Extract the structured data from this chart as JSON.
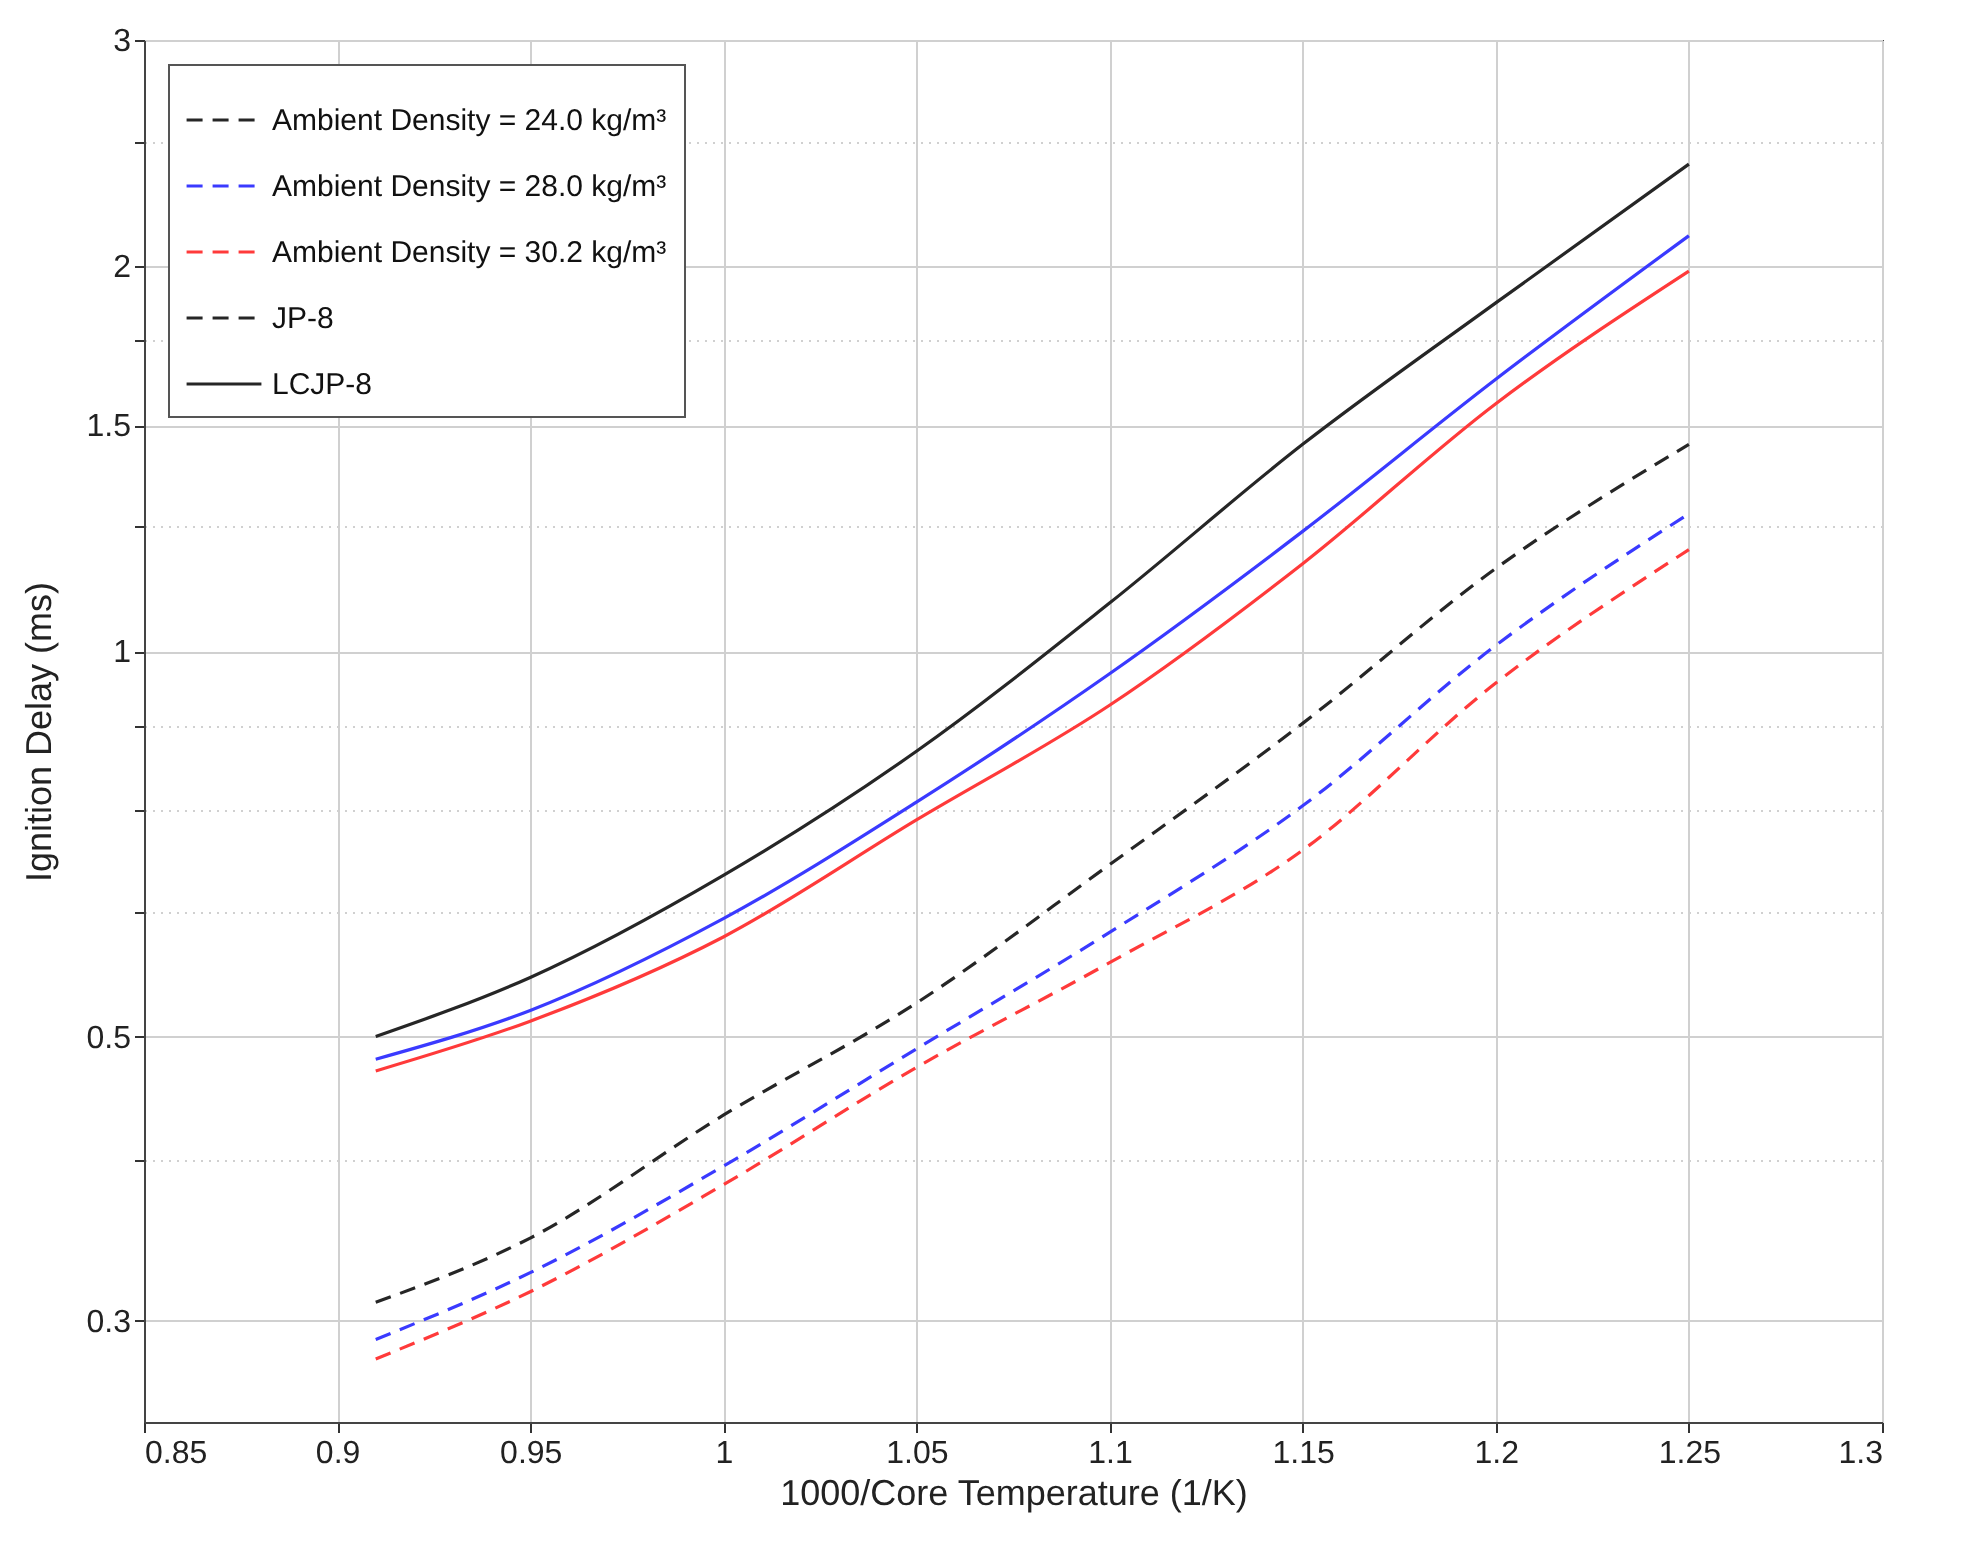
{
  "chart_data": {
    "type": "line",
    "xlabel": "1000/Core Temperature (1/K)",
    "ylabel": "Ignition Delay (ms)",
    "x": [
      0.91,
      0.95,
      1.0,
      1.05,
      1.1,
      1.15,
      1.2,
      1.25
    ],
    "series": [
      {
        "name": "Ambient Density = 24.0 kg/m³",
        "color": "#262626",
        "line_style": "dashed",
        "values": [
          0.31,
          0.348,
          0.434,
          0.531,
          0.681,
          0.878,
          1.16,
          1.45
        ]
      },
      {
        "name": "Ambient Density = 28.0 kg/m³",
        "color": "#3a3aff",
        "line_style": "dashed",
        "values": [
          0.29,
          0.327,
          0.396,
          0.489,
          0.603,
          0.757,
          1.01,
          1.28
        ]
      },
      {
        "name": "Ambient Density = 30.2 kg/m³",
        "color": "#ff3a3a",
        "line_style": "dashed",
        "values": [
          0.28,
          0.316,
          0.383,
          0.473,
          0.571,
          0.699,
          0.944,
          1.2
        ]
      },
      {
        "name": "JP-8",
        "color": "#262626",
        "line_style": "dashed",
        "values": [
          null,
          null,
          null,
          null,
          null,
          null,
          null,
          null
        ]
      },
      {
        "name": "LCJP-8",
        "color": "#262626",
        "line_style": "solid",
        "values": [
          0.5,
          0.556,
          0.668,
          0.835,
          1.09,
          1.45,
          1.87,
          2.4
        ]
      },
      {
        "color": "#3a3aff",
        "line_style": "solid",
        "values": [
          0.48,
          0.524,
          0.618,
          0.762,
          0.96,
          1.24,
          1.63,
          2.11
        ]
      },
      {
        "color": "#ff3a3a",
        "line_style": "solid",
        "values": [
          0.47,
          0.514,
          0.598,
          0.738,
          0.907,
          1.17,
          1.56,
          1.98
        ]
      }
    ],
    "log": "y",
    "xlim": [
      0.85,
      1.3
    ],
    "xticks": [
      0.85,
      0.9,
      0.95,
      1,
      1.05,
      1.1,
      1.15,
      1.2,
      1.25,
      1.3
    ],
    "ylim": [
      0.25,
      3
    ],
    "yticks": [
      0.3,
      {
        "value": 0.4,
        "label": null
      },
      0.5,
      {
        "value": 0.625,
        "label": null
      },
      {
        "value": 0.75,
        "label": null
      },
      {
        "value": 0.875,
        "label": null
      },
      1,
      {
        "value": 1.25,
        "label": null
      },
      1.5,
      {
        "value": 1.75,
        "label": null
      },
      2,
      {
        "value": 2.5,
        "label": null
      },
      3
    ],
    "grid": true,
    "legend": "top left"
  }
}
